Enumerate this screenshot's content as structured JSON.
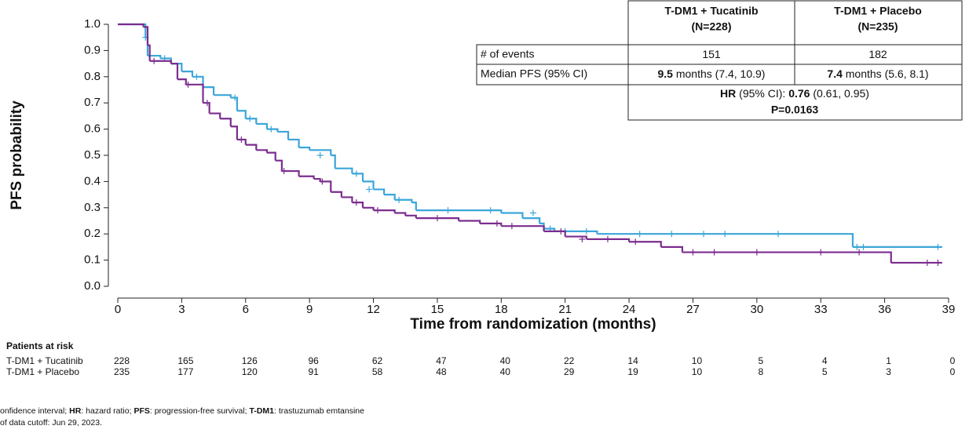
{
  "chart_data": {
    "type": "step",
    "x_label": "Time from randomization (months)",
    "y_label": "PFS probability",
    "xlim": [
      0,
      39
    ],
    "xticks": [
      0,
      3,
      6,
      9,
      12,
      15,
      18,
      21,
      24,
      27,
      30,
      33,
      36,
      39
    ],
    "ylim": [
      0,
      1
    ],
    "yticks": [
      {
        "value": 0,
        "label": "0.0"
      },
      0.1,
      0.2,
      0.3,
      0.4,
      0.5,
      0.6,
      0.7,
      0.8,
      0.9,
      {
        "value": 1,
        "label": "1.0"
      }
    ],
    "series": [
      {
        "name": "T-DM1 + Tucatinib",
        "color": "#3aa6d9",
        "x": [
          0,
          1.2,
          1.3,
          1.4,
          2,
          2.5,
          3,
          3.5,
          4,
          4.5,
          5.3,
          5.6,
          6,
          6.5,
          7,
          7.5,
          8,
          8.5,
          9,
          10,
          10.2,
          11,
          11.5,
          12,
          12.5,
          13,
          13.8,
          14,
          18,
          19,
          19.8,
          20,
          20.5,
          22.5,
          34.5,
          38.7
        ],
        "values": [
          1.0,
          1.0,
          0.95,
          0.88,
          0.87,
          0.85,
          0.82,
          0.8,
          0.76,
          0.73,
          0.72,
          0.67,
          0.64,
          0.62,
          0.6,
          0.59,
          0.56,
          0.53,
          0.52,
          0.5,
          0.45,
          0.43,
          0.4,
          0.37,
          0.35,
          0.33,
          0.32,
          0.29,
          0.28,
          0.26,
          0.24,
          0.22,
          0.21,
          0.2,
          0.15,
          0.15
        ],
        "censor_x": [
          1.3,
          2.2,
          3.7,
          5.5,
          6.2,
          7.2,
          9.5,
          11.2,
          11.8,
          13.2,
          15.5,
          17.5,
          19.5,
          20.3,
          21,
          22,
          24.5,
          26,
          27.5,
          28.5,
          31,
          34.7,
          35,
          38.5
        ],
        "censor_y": [
          0.95,
          0.87,
          0.8,
          0.72,
          0.64,
          0.6,
          0.5,
          0.43,
          0.37,
          0.33,
          0.29,
          0.29,
          0.28,
          0.22,
          0.21,
          0.21,
          0.2,
          0.2,
          0.2,
          0.2,
          0.2,
          0.15,
          0.15,
          0.15
        ]
      },
      {
        "name": "T-DM1 + Placebo",
        "color": "#7b2d8e",
        "x": [
          0,
          1.2,
          1.4,
          1.5,
          2.5,
          2.8,
          3.2,
          4,
          4.3,
          4.8,
          5.3,
          5.6,
          6,
          6.5,
          7,
          7.4,
          7.7,
          8.5,
          9.2,
          9.5,
          10,
          10.5,
          11,
          11.5,
          12,
          13,
          13.5,
          14,
          16,
          17,
          18,
          20,
          21,
          22,
          24,
          25.5,
          26.5,
          36.3,
          38.7
        ],
        "values": [
          1.0,
          0.99,
          0.92,
          0.86,
          0.85,
          0.79,
          0.77,
          0.7,
          0.66,
          0.64,
          0.61,
          0.56,
          0.54,
          0.52,
          0.51,
          0.48,
          0.44,
          0.42,
          0.41,
          0.4,
          0.36,
          0.34,
          0.32,
          0.3,
          0.29,
          0.28,
          0.27,
          0.26,
          0.25,
          0.24,
          0.23,
          0.21,
          0.19,
          0.18,
          0.17,
          0.15,
          0.13,
          0.09,
          0.09
        ],
        "censor_x": [
          1.7,
          3.3,
          4.2,
          5.8,
          7.8,
          9.6,
          11.2,
          12.2,
          15,
          17.8,
          18.5,
          20.8,
          21.8,
          23,
          24.3,
          27,
          28,
          30,
          33,
          34.8,
          38,
          38.5
        ],
        "censor_y": [
          0.86,
          0.77,
          0.7,
          0.56,
          0.44,
          0.4,
          0.32,
          0.29,
          0.26,
          0.24,
          0.23,
          0.21,
          0.18,
          0.18,
          0.17,
          0.13,
          0.13,
          0.13,
          0.13,
          0.13,
          0.09,
          0.09
        ]
      }
    ]
  },
  "table": {
    "columns": [
      [
        "T-DM1 + Tucatinib",
        "(N=228)"
      ],
      [
        "T-DM1 + Placebo",
        "(N=235)"
      ]
    ],
    "rows": [
      {
        "label": "# of events",
        "cells": [
          [
            {
              "text": "151",
              "bold": false
            }
          ],
          [
            {
              "text": "182",
              "bold": false
            }
          ]
        ]
      },
      {
        "label": "Median PFS (95% CI)",
        "cells": [
          [
            {
              "text": "9.5",
              "bold": true
            },
            {
              "text": " months (7.4, 10.9)",
              "bold": false
            }
          ],
          [
            {
              "text": "7.4",
              "bold": true
            },
            {
              "text": " months (5.6, 8.1)",
              "bold": false
            }
          ]
        ]
      }
    ],
    "hr": [
      {
        "text": "HR",
        "bold": true
      },
      {
        "text": " (95% CI): ",
        "bold": false
      },
      {
        "text": "0.76",
        "bold": true
      },
      {
        "text": " (0.61, 0.95)",
        "bold": false
      }
    ],
    "p": "P=0.0163"
  },
  "risk_table": {
    "title": "Patients at risk",
    "rows": [
      {
        "label": "T-DM1 + Tucatinib",
        "values": [
          "228",
          "165",
          "126",
          "96",
          "62",
          "47",
          "40",
          "22",
          "14",
          "10",
          "5",
          "4",
          "1",
          "0"
        ]
      },
      {
        "label": "T-DM1 + Placebo",
        "values": [
          "235",
          "177",
          "120",
          "91",
          "58",
          "48",
          "40",
          "29",
          "19",
          "10",
          "8",
          "5",
          "3",
          "0"
        ]
      }
    ]
  },
  "footnote": [
    [
      {
        "text": "onfidence interval; ",
        "bold": false
      },
      {
        "text": "HR",
        "bold": true
      },
      {
        "text": ": hazard ratio; ",
        "bold": false
      },
      {
        "text": "PFS",
        "bold": true
      },
      {
        "text": ": progression-free survival; ",
        "bold": false
      },
      {
        "text": "T-DM1",
        "bold": true
      },
      {
        "text": ": trastuzumab emtansine",
        "bold": false
      }
    ],
    [
      {
        "text": "of data cutoff: Jun 29, 2023.",
        "bold": false
      }
    ]
  ]
}
